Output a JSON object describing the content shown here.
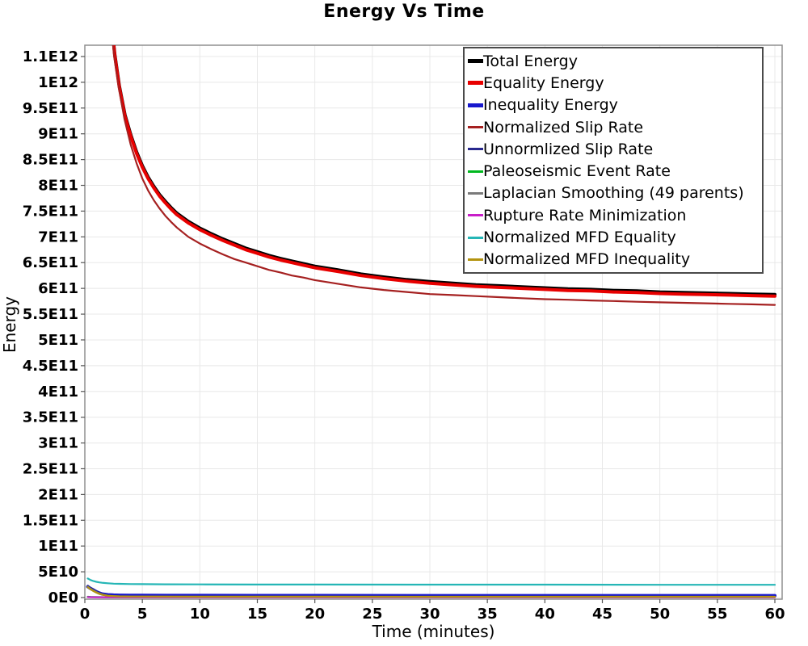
{
  "title": "Energy Vs Time",
  "axes": {
    "x": {
      "label": "Time (minutes)",
      "ticks": [
        0,
        5,
        10,
        15,
        20,
        25,
        30,
        35,
        40,
        45,
        50,
        55,
        60
      ],
      "range": [
        0,
        60.6
      ]
    },
    "y": {
      "label": "Energy",
      "tick_labels": [
        "0E0",
        "5E10",
        "1E11",
        "1.5E11",
        "2E11",
        "2.5E11",
        "3E11",
        "3.5E11",
        "4E11",
        "4.5E11",
        "5E11",
        "5.5E11",
        "6E11",
        "6.5E11",
        "7E11",
        "7.5E11",
        "8E11",
        "8.5E11",
        "9E11",
        "9.5E11",
        "1E12",
        "1.1E12"
      ],
      "tick_step_value": 50000000000.0,
      "range": [
        0,
        1070000000000.0
      ]
    }
  },
  "colors": {
    "background": "#ffffff",
    "grid": "#e8e8e8",
    "plot_border": "#8f8f8f",
    "tick": "#555555",
    "text": "#000000",
    "legend_border": "#4a4a4a"
  },
  "legend": {
    "position": "top-right-inside"
  },
  "chart_data": {
    "type": "line",
    "title": "Energy Vs Time",
    "xlabel": "Time (minutes)",
    "ylabel": "Energy",
    "grid": true,
    "legend_position": "top-right-inside",
    "xlim": [
      0,
      60.6
    ],
    "ylim": [
      0,
      1070000000000.0
    ],
    "series": [
      {
        "name": "Total Energy",
        "color": "#000000",
        "thick": true,
        "points": [
          [
            2.3,
            1123000000000.0
          ],
          [
            2.6,
            1055000000000.0
          ],
          [
            3,
            993000000000.0
          ],
          [
            3.5,
            936000000000.0
          ],
          [
            4,
            898000000000.0
          ],
          [
            4.5,
            865000000000.0
          ],
          [
            5,
            838000000000.0
          ],
          [
            5.5,
            816000000000.0
          ],
          [
            6,
            798000000000.0
          ],
          [
            6.5,
            782000000000.0
          ],
          [
            7,
            769000000000.0
          ],
          [
            7.5,
            757000000000.0
          ],
          [
            8,
            746000000000.0
          ],
          [
            9,
            730000000000.0
          ],
          [
            10,
            717000000000.0
          ],
          [
            11,
            706000000000.0
          ],
          [
            12,
            696000000000.0
          ],
          [
            13,
            687000000000.0
          ],
          [
            14,
            678000000000.0
          ],
          [
            15,
            671000000000.0
          ],
          [
            16,
            664000000000.0
          ],
          [
            17,
            658000000000.0
          ],
          [
            18,
            653000000000.0
          ],
          [
            19,
            648000000000.0
          ],
          [
            20,
            643000000000.0
          ],
          [
            22,
            636000000000.0
          ],
          [
            24,
            628000000000.0
          ],
          [
            26,
            622000000000.0
          ],
          [
            28,
            617000000000.0
          ],
          [
            30,
            613000000000.0
          ],
          [
            32,
            610000000000.0
          ],
          [
            34,
            607000000000.0
          ],
          [
            36,
            605000000000.0
          ],
          [
            38,
            603000000000.0
          ],
          [
            40,
            601000000000.0
          ],
          [
            42,
            599000000000.0
          ],
          [
            44,
            598000000000.0
          ],
          [
            46,
            596000000000.0
          ],
          [
            48,
            595000000000.0
          ],
          [
            50,
            593000000000.0
          ],
          [
            52,
            592000000000.0
          ],
          [
            54,
            591000000000.0
          ],
          [
            56,
            590000000000.0
          ],
          [
            58,
            589000000000.0
          ],
          [
            60,
            588000000000.0
          ]
        ]
      },
      {
        "name": "Equality Energy",
        "color": "#e80000",
        "thick": true,
        "points": [
          [
            2.3,
            1120000000000.0
          ],
          [
            2.6,
            1052000000000.0
          ],
          [
            3,
            990000000000.0
          ],
          [
            3.5,
            933000000000.0
          ],
          [
            4,
            895000000000.0
          ],
          [
            4.5,
            862000000000.0
          ],
          [
            5,
            835000000000.0
          ],
          [
            5.5,
            813000000000.0
          ],
          [
            6,
            795000000000.0
          ],
          [
            6.5,
            779000000000.0
          ],
          [
            7,
            766000000000.0
          ],
          [
            7.5,
            754000000000.0
          ],
          [
            8,
            743000000000.0
          ],
          [
            9,
            727000000000.0
          ],
          [
            10,
            714000000000.0
          ],
          [
            11,
            703000000000.0
          ],
          [
            12,
            693000000000.0
          ],
          [
            13,
            684000000000.0
          ],
          [
            14,
            675000000000.0
          ],
          [
            15,
            668000000000.0
          ],
          [
            16,
            661000000000.0
          ],
          [
            17,
            655000000000.0
          ],
          [
            18,
            650000000000.0
          ],
          [
            19,
            645000000000.0
          ],
          [
            20,
            640000000000.0
          ],
          [
            22,
            633000000000.0
          ],
          [
            24,
            625000000000.0
          ],
          [
            26,
            619000000000.0
          ],
          [
            28,
            614000000000.0
          ],
          [
            30,
            610000000000.0
          ],
          [
            32,
            607000000000.0
          ],
          [
            34,
            604000000000.0
          ],
          [
            36,
            602000000000.0
          ],
          [
            38,
            600000000000.0
          ],
          [
            40,
            598000000000.0
          ],
          [
            42,
            596000000000.0
          ],
          [
            44,
            595000000000.0
          ],
          [
            46,
            593000000000.0
          ],
          [
            48,
            592000000000.0
          ],
          [
            50,
            590000000000.0
          ],
          [
            52,
            589000000000.0
          ],
          [
            54,
            588000000000.0
          ],
          [
            56,
            587000000000.0
          ],
          [
            58,
            586000000000.0
          ],
          [
            60,
            585000000000.0
          ]
        ]
      },
      {
        "name": "Inequality Energy",
        "color": "#1717cd",
        "thick": true,
        "points": [
          [
            0.25,
            21000000000.0
          ],
          [
            0.5,
            17500000000.0
          ],
          [
            0.75,
            14500000000.0
          ],
          [
            1,
            11500000000.0
          ],
          [
            1.25,
            9000000000.0
          ],
          [
            1.5,
            7000000000.0
          ],
          [
            2,
            5500000000.0
          ],
          [
            2.5,
            4800000000.0
          ],
          [
            3,
            4500000000.0
          ],
          [
            4,
            4300000000.0
          ],
          [
            5,
            4200000000.0
          ],
          [
            7,
            4100000000.0
          ],
          [
            10,
            4000000000.0
          ],
          [
            15,
            3900000000.0
          ],
          [
            20,
            3900000000.0
          ],
          [
            30,
            3800000000.0
          ],
          [
            40,
            3800000000.0
          ],
          [
            50,
            3700000000.0
          ],
          [
            60,
            3700000000.0
          ]
        ]
      },
      {
        "name": "Normalized Slip Rate",
        "color": "#a52020",
        "thick": false,
        "points": [
          [
            2.25,
            1120000000000.0
          ],
          [
            2.55,
            1050000000000.0
          ],
          [
            2.95,
            990000000000.0
          ],
          [
            3.45,
            928000000000.0
          ],
          [
            4,
            878000000000.0
          ],
          [
            4.5,
            843000000000.0
          ],
          [
            5,
            813000000000.0
          ],
          [
            5.5,
            790000000000.0
          ],
          [
            6,
            771000000000.0
          ],
          [
            6.5,
            755000000000.0
          ],
          [
            7,
            741000000000.0
          ],
          [
            7.5,
            729000000000.0
          ],
          [
            8,
            718000000000.0
          ],
          [
            9,
            700000000000.0
          ],
          [
            10,
            687000000000.0
          ],
          [
            11,
            676000000000.0
          ],
          [
            12,
            666000000000.0
          ],
          [
            13,
            657000000000.0
          ],
          [
            14,
            650000000000.0
          ],
          [
            15,
            643000000000.0
          ],
          [
            16,
            636000000000.0
          ],
          [
            17,
            631000000000.0
          ],
          [
            18,
            625000000000.0
          ],
          [
            19,
            621000000000.0
          ],
          [
            20,
            616000000000.0
          ],
          [
            22,
            609000000000.0
          ],
          [
            24,
            602000000000.0
          ],
          [
            26,
            597000000000.0
          ],
          [
            28,
            593000000000.0
          ],
          [
            30,
            589000000000.0
          ],
          [
            32,
            587000000000.0
          ],
          [
            34,
            585000000000.0
          ],
          [
            36,
            583000000000.0
          ],
          [
            38,
            581000000000.0
          ],
          [
            40,
            579000000000.0
          ],
          [
            42,
            578000000000.0
          ],
          [
            44,
            576500000000.0
          ],
          [
            46,
            575500000000.0
          ],
          [
            48,
            574000000000.0
          ],
          [
            50,
            573000000000.0
          ],
          [
            52,
            572000000000.0
          ],
          [
            54,
            571000000000.0
          ],
          [
            56,
            570000000000.0
          ],
          [
            58,
            569000000000.0
          ],
          [
            60,
            568000000000.0
          ]
        ]
      },
      {
        "name": "Unnormlized Slip Rate",
        "color": "#28288e",
        "thick": false,
        "points": [
          [
            0.25,
            23000000000.0
          ],
          [
            0.5,
            19000000000.0
          ],
          [
            0.75,
            15500000000.0
          ],
          [
            1,
            12000000000.0
          ],
          [
            1.25,
            9500000000.0
          ],
          [
            1.5,
            7000000000.0
          ],
          [
            2,
            4500000000.0
          ],
          [
            2.5,
            3000000000.0
          ],
          [
            3,
            2500000000.0
          ],
          [
            4,
            2200000000.0
          ],
          [
            5,
            2000000000.0
          ],
          [
            10,
            1800000000.0
          ],
          [
            20,
            1700000000.0
          ],
          [
            30,
            1600000000.0
          ],
          [
            40,
            1600000000.0
          ],
          [
            50,
            1500000000.0
          ],
          [
            60,
            1500000000.0
          ]
        ]
      },
      {
        "name": "Paleoseismic Event Rate",
        "color": "#00b81f",
        "thick": false,
        "points": [
          [
            0.25,
            1500000000.0
          ],
          [
            0.5,
            1200000000.0
          ],
          [
            1,
            900000000.0
          ],
          [
            2,
            700000000.0
          ],
          [
            3,
            600000000.0
          ],
          [
            5,
            500000000.0
          ],
          [
            10,
            500000000.0
          ],
          [
            20,
            500000000.0
          ],
          [
            30,
            500000000.0
          ],
          [
            40,
            500000000.0
          ],
          [
            50,
            500000000.0
          ],
          [
            60,
            500000000.0
          ]
        ]
      },
      {
        "name": "Laplacian Smoothing (49 parents)",
        "color": "#7a7a7a",
        "thick": false,
        "points": [
          [
            0.25,
            21000000000.0
          ],
          [
            0.5,
            17000000000.0
          ],
          [
            0.75,
            13500000000.0
          ],
          [
            1,
            10500000000.0
          ],
          [
            1.25,
            8000000000.0
          ],
          [
            1.5,
            6000000000.0
          ],
          [
            2,
            3500000000.0
          ],
          [
            2.5,
            2500000000.0
          ],
          [
            3,
            2000000000.0
          ],
          [
            4,
            1700000000.0
          ],
          [
            5,
            1500000000.0
          ],
          [
            10,
            1300000000.0
          ],
          [
            20,
            1200000000.0
          ],
          [
            30,
            1100000000.0
          ],
          [
            40,
            1100000000.0
          ],
          [
            50,
            1100000000.0
          ],
          [
            60,
            1000000000.0
          ]
        ]
      },
      {
        "name": "Rupture Rate Minimization",
        "color": "#c81ec8",
        "thick": false,
        "points": [
          [
            0.25,
            900000000.0
          ],
          [
            0.5,
            800000000.0
          ],
          [
            1,
            700000000.0
          ],
          [
            2,
            600000000.0
          ],
          [
            5,
            500000000.0
          ],
          [
            10,
            500000000.0
          ],
          [
            20,
            400000000.0
          ],
          [
            30,
            400000000.0
          ],
          [
            40,
            400000000.0
          ],
          [
            50,
            400000000.0
          ],
          [
            60,
            400000000.0
          ]
        ]
      },
      {
        "name": "Normalized MFD Equality",
        "color": "#25b6b6",
        "thick": false,
        "points": [
          [
            0.25,
            37000000000.0
          ],
          [
            0.5,
            34000000000.0
          ],
          [
            0.75,
            32000000000.0
          ],
          [
            1,
            30500000000.0
          ],
          [
            1.25,
            29500000000.0
          ],
          [
            1.5,
            28700000000.0
          ],
          [
            2,
            27700000000.0
          ],
          [
            2.5,
            27000000000.0
          ],
          [
            3,
            26600000000.0
          ],
          [
            4,
            26200000000.0
          ],
          [
            5,
            26000000000.0
          ],
          [
            7,
            25700000000.0
          ],
          [
            10,
            25500000000.0
          ],
          [
            15,
            25300000000.0
          ],
          [
            20,
            25200000000.0
          ],
          [
            30,
            25000000000.0
          ],
          [
            40,
            25000000000.0
          ],
          [
            50,
            24800000000.0
          ],
          [
            60,
            24700000000.0
          ]
        ]
      },
      {
        "name": "Normalized MFD Inequality",
        "color": "#b3930f",
        "thick": false,
        "points": [
          [
            0.25,
            20000000000.0
          ],
          [
            0.5,
            16000000000.0
          ],
          [
            0.75,
            12500000000.0
          ],
          [
            1,
            9500000000.0
          ],
          [
            1.25,
            7000000000.0
          ],
          [
            1.5,
            5500000000.0
          ],
          [
            2,
            3500000000.0
          ],
          [
            2.5,
            2800000000.0
          ],
          [
            3,
            2400000000.0
          ],
          [
            4,
            2100000000.0
          ],
          [
            5,
            2000000000.0
          ],
          [
            10,
            1800000000.0
          ],
          [
            20,
            1700000000.0
          ],
          [
            30,
            1600000000.0
          ],
          [
            40,
            1600000000.0
          ],
          [
            50,
            1500000000.0
          ],
          [
            60,
            1500000000.0
          ]
        ]
      }
    ]
  }
}
